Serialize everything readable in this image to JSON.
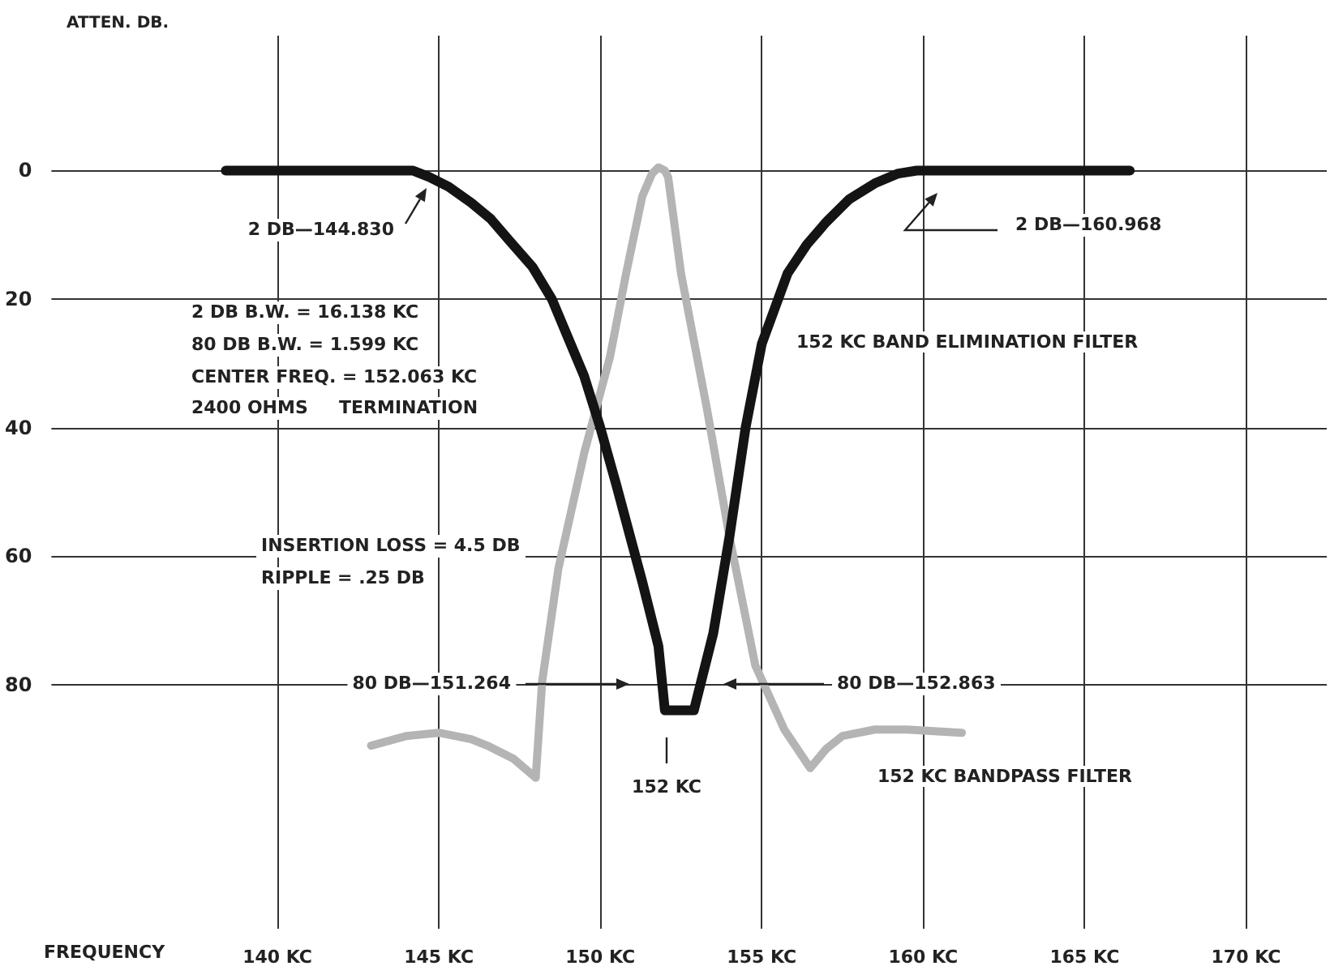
{
  "chart_data": {
    "type": "line",
    "xlabel": "FREQUENCY",
    "ylabel": "ATTEN. DB.",
    "xlim": [
      133,
      172.5
    ],
    "xticks": [
      {
        "value": 140,
        "label": "140 KC"
      },
      {
        "value": 145,
        "label": "145 KC"
      },
      {
        "value": 150,
        "label": "150 KC"
      },
      {
        "value": 155,
        "label": "155 KC"
      },
      {
        "value": 160,
        "label": "160 KC"
      },
      {
        "value": 165,
        "label": "165 KC"
      },
      {
        "value": 170,
        "label": "170 KC"
      }
    ],
    "ylim": [
      118,
      -21
    ],
    "yticks": [
      0,
      20,
      40,
      60,
      80
    ],
    "grid": true,
    "series": [
      {
        "name": "152 KC BAND ELIMINATION FILTER",
        "color": "#141414",
        "x": [
          138.4,
          144.2,
          144.7,
          145.3,
          146.0,
          146.6,
          147.2,
          147.9,
          148.5,
          149.0,
          149.5,
          150.0,
          150.5,
          151.3,
          151.8,
          152.0,
          152.9,
          153.5,
          154.0,
          154.5,
          155.0,
          155.8,
          156.4,
          157.0,
          157.7,
          158.5,
          159.2,
          159.8,
          166.4
        ],
        "values": [
          0,
          0,
          1,
          2.5,
          5,
          7.5,
          11,
          15,
          20,
          26,
          32,
          40,
          49,
          64,
          74,
          84,
          84,
          72,
          57,
          40,
          27,
          16,
          11.5,
          8,
          4.5,
          2,
          0.5,
          0,
          0
        ]
      },
      {
        "name": "152 KC BANDPASS FILTER",
        "color": "#b4b4b4",
        "x": [
          142.9,
          144.0,
          145.0,
          146.0,
          146.5,
          147.3,
          148.0,
          148.2,
          148.7,
          149.5,
          150.3,
          150.8,
          151.3,
          151.6,
          151.8,
          152.0,
          152.1,
          152.5,
          153.3,
          154.0,
          154.8,
          155.7,
          156.5,
          157.0,
          157.5,
          158.5,
          159.5,
          161.2
        ],
        "values": [
          89.5,
          88,
          87.5,
          88.5,
          89.5,
          91.5,
          94.5,
          79.5,
          62,
          44,
          29,
          16,
          4,
          0.5,
          -0.5,
          0,
          1,
          16,
          37,
          57,
          77,
          87,
          93,
          90,
          88,
          87,
          87,
          87.5
        ]
      }
    ],
    "annotations": [
      "2 DB—144.830",
      "2 DB—160.968",
      "80 DB—151.264",
      "80 DB—152.863",
      "152 KC",
      "2 DB B.W. = 16.138 KC",
      "80 DB B.W. = 1.599 KC",
      "CENTER FREQ. = 152.063 KC",
      "2400 OHMS     TERMINATION",
      "INSERTION LOSS = 4.5 DB",
      "RIPPLE = .25 DB"
    ]
  }
}
